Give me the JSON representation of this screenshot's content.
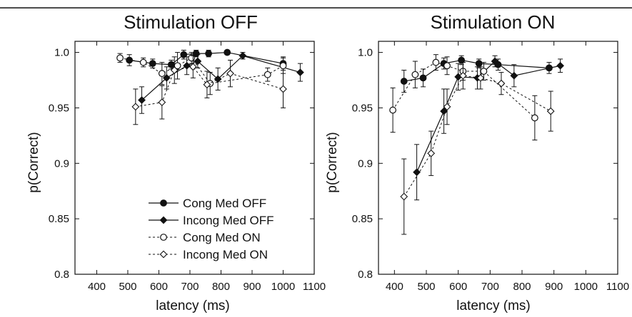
{
  "chart_data": [
    {
      "type": "line",
      "title": "Stimulation OFF",
      "xlabel": "latency (ms)",
      "ylabel": "p(Correct)",
      "xlim": [
        330,
        1100
      ],
      "ylim": [
        0.8,
        1.01
      ],
      "xticks": [
        400,
        500,
        600,
        700,
        800,
        900,
        1000,
        1100
      ],
      "yticks": [
        0.8,
        0.85,
        0.9,
        0.95,
        1.0
      ],
      "xtick_labels": [
        "400",
        "500",
        "600",
        "700",
        "800",
        "900",
        "1000",
        "1100"
      ],
      "ytick_labels": [
        "0.8",
        "0.85",
        "0.9",
        "0.95",
        "1.0"
      ],
      "legend": "lower-right",
      "series": [
        {
          "name": "Cong Med OFF",
          "marker": "circle",
          "filled": true,
          "dash": false,
          "x": [
            505,
            580,
            640,
            680,
            720,
            760,
            820,
            1000
          ],
          "y": [
            0.993,
            0.99,
            0.989,
            0.998,
            0.999,
            0.999,
            1.0,
            0.99
          ],
          "err": [
            0.005,
            0.004,
            0.004,
            0.004,
            0.003,
            0.003,
            0.002,
            0.006
          ]
        },
        {
          "name": "Incong Med OFF",
          "marker": "diamond",
          "filled": true,
          "dash": false,
          "x": [
            545,
            625,
            690,
            725,
            790,
            870,
            1055
          ],
          "y": [
            0.957,
            0.977,
            0.988,
            0.992,
            0.976,
            0.997,
            0.982
          ],
          "err": [
            0.012,
            0.01,
            0.008,
            0.006,
            0.01,
            0.003,
            0.008
          ]
        },
        {
          "name": "Cong Med ON",
          "marker": "circle",
          "filled": false,
          "dash": true,
          "x": [
            475,
            550,
            610,
            660,
            705,
            765,
            950,
            1000
          ],
          "y": [
            0.995,
            0.991,
            0.981,
            0.988,
            0.995,
            0.972,
            0.98,
            0.988
          ],
          "err": [
            0.004,
            0.004,
            0.01,
            0.012,
            0.005,
            0.01,
            0.006,
            0.007
          ]
        },
        {
          "name": "Incong Med ON",
          "marker": "diamond",
          "filled": false,
          "dash": true,
          "x": [
            525,
            610,
            650,
            710,
            755,
            830,
            1000
          ],
          "y": [
            0.951,
            0.955,
            0.984,
            0.987,
            0.971,
            0.981,
            0.967
          ],
          "err": [
            0.016,
            0.015,
            0.012,
            0.01,
            0.012,
            0.012,
            0.017
          ]
        }
      ]
    },
    {
      "type": "line",
      "title": "Stimulation ON",
      "xlabel": "latency (ms)",
      "ylabel": "p(Correct)",
      "xlim": [
        350,
        1100
      ],
      "ylim": [
        0.8,
        1.01
      ],
      "xticks": [
        400,
        500,
        600,
        700,
        800,
        900,
        1000,
        1100
      ],
      "yticks": [
        0.8,
        0.85,
        0.9,
        0.95,
        1.0
      ],
      "xtick_labels": [
        "400",
        "500",
        "600",
        "700",
        "800",
        "900",
        "1000",
        "1100"
      ],
      "ytick_labels": [
        "0.8",
        "0.85",
        "0.9",
        "0.95",
        "1.0"
      ],
      "series": [
        {
          "name": "Cong Med OFF",
          "marker": "circle",
          "filled": true,
          "dash": false,
          "x": [
            430,
            490,
            555,
            610,
            665,
            725,
            885
          ],
          "y": [
            0.974,
            0.977,
            0.99,
            0.993,
            0.99,
            0.989,
            0.986
          ],
          "err": [
            0.01,
            0.008,
            0.005,
            0.004,
            0.004,
            0.005,
            0.005
          ]
        },
        {
          "name": "Incong Med OFF",
          "marker": "diamond",
          "filled": true,
          "dash": false,
          "x": [
            470,
            555,
            600,
            660,
            715,
            775,
            920
          ],
          "y": [
            0.892,
            0.947,
            0.978,
            0.977,
            0.992,
            0.979,
            0.988
          ],
          "err": [
            0.025,
            0.02,
            0.012,
            0.01,
            0.005,
            0.01,
            0.006
          ]
        },
        {
          "name": "Cong Med ON",
          "marker": "circle",
          "filled": false,
          "dash": true,
          "x": [
            395,
            465,
            530,
            565,
            615,
            680,
            840
          ],
          "y": [
            0.948,
            0.98,
            0.991,
            0.988,
            0.983,
            0.983,
            0.941
          ],
          "err": [
            0.02,
            0.012,
            0.007,
            0.008,
            0.008,
            0.008,
            0.02
          ]
        },
        {
          "name": "Incong Med ON",
          "marker": "diamond",
          "filled": false,
          "dash": true,
          "x": [
            430,
            515,
            565,
            615,
            670,
            735,
            890
          ],
          "y": [
            0.87,
            0.909,
            0.951,
            0.979,
            0.977,
            0.972,
            0.947
          ],
          "err": [
            0.034,
            0.02,
            0.016,
            0.012,
            0.01,
            0.01,
            0.018
          ]
        }
      ]
    }
  ]
}
